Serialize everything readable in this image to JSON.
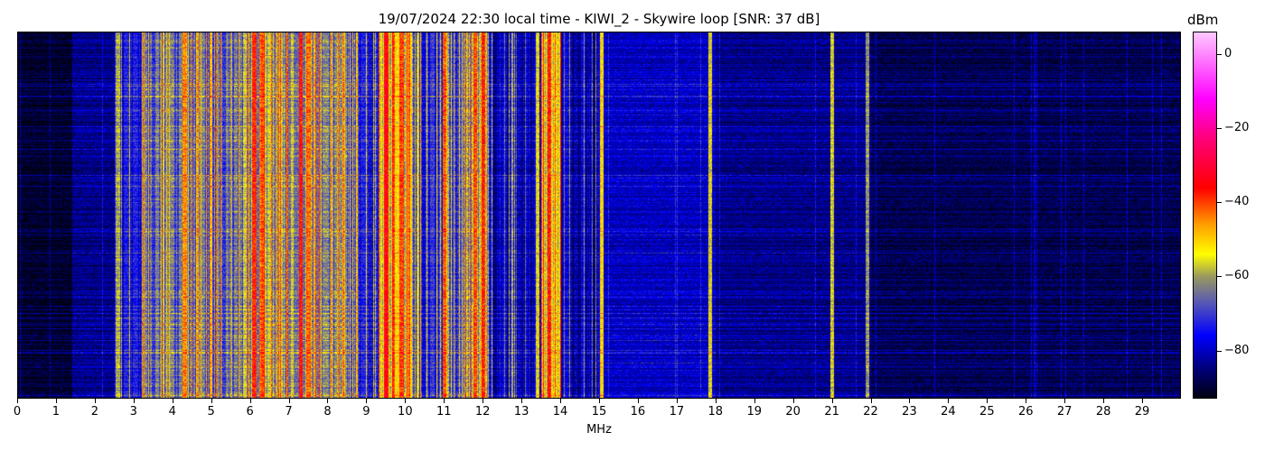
{
  "chart_data": {
    "type": "heatmap",
    "title": "19/07/2024 22:30 local time - KIWI_2 - Skywire loop [SNR: 37 dB]",
    "xlabel": "MHz",
    "xlim": [
      0,
      30
    ],
    "xticks": [
      0,
      1,
      2,
      3,
      4,
      5,
      6,
      7,
      8,
      9,
      10,
      11,
      12,
      13,
      14,
      15,
      16,
      17,
      18,
      19,
      20,
      21,
      22,
      23,
      24,
      25,
      26,
      27,
      28,
      29
    ],
    "colorbar": {
      "label": "dBm",
      "range": [
        -93,
        6
      ],
      "ticks": [
        0,
        -20,
        -40,
        -60,
        -80
      ],
      "tick_labels": [
        "0",
        "−20",
        "−40",
        "−60",
        "−80"
      ],
      "colormap": [
        [
          -93,
          "#000010"
        ],
        [
          -85,
          "#00007a"
        ],
        [
          -76,
          "#0000ff"
        ],
        [
          -67,
          "#5a5ab4"
        ],
        [
          -60,
          "#9a9a60"
        ],
        [
          -54,
          "#ffff00"
        ],
        [
          -46,
          "#ffa000"
        ],
        [
          -36,
          "#ff0000"
        ],
        [
          -22,
          "#ff0080"
        ],
        [
          -12,
          "#ff00ff"
        ],
        [
          6,
          "#ffc8ff"
        ]
      ]
    },
    "band_profile_dbm": [
      [
        0,
        -91
      ],
      [
        1.4,
        -84
      ],
      [
        2.5,
        -73
      ],
      [
        3.2,
        -63
      ],
      [
        5.8,
        -57
      ],
      [
        7.8,
        -62
      ],
      [
        8.8,
        -73
      ],
      [
        9.3,
        -52
      ],
      [
        10.2,
        -70
      ],
      [
        11.5,
        -58
      ],
      [
        12.1,
        -77
      ],
      [
        13.5,
        -52
      ],
      [
        14.0,
        -77
      ],
      [
        15.0,
        -80
      ],
      [
        18.0,
        -84
      ],
      [
        22.0,
        -88
      ],
      [
        30,
        -89
      ]
    ],
    "strong_carriers": [
      {
        "mhz": 2.6,
        "dbm": -60
      },
      {
        "mhz": 4.3,
        "dbm": -45
      },
      {
        "mhz": 6.1,
        "dbm": -38
      },
      {
        "mhz": 6.3,
        "dbm": -42
      },
      {
        "mhz": 7.3,
        "dbm": -37
      },
      {
        "mhz": 7.5,
        "dbm": -42
      },
      {
        "mhz": 9.5,
        "dbm": -35
      },
      {
        "mhz": 9.9,
        "dbm": -40
      },
      {
        "mhz": 11.0,
        "dbm": -42
      },
      {
        "mhz": 11.8,
        "dbm": -40
      },
      {
        "mhz": 12.0,
        "dbm": -38
      },
      {
        "mhz": 13.4,
        "dbm": -55
      },
      {
        "mhz": 13.7,
        "dbm": -37
      },
      {
        "mhz": 15.05,
        "dbm": -52
      },
      {
        "mhz": 17.85,
        "dbm": -56
      },
      {
        "mhz": 21.0,
        "dbm": -57
      },
      {
        "mhz": 21.9,
        "dbm": -62
      }
    ]
  }
}
